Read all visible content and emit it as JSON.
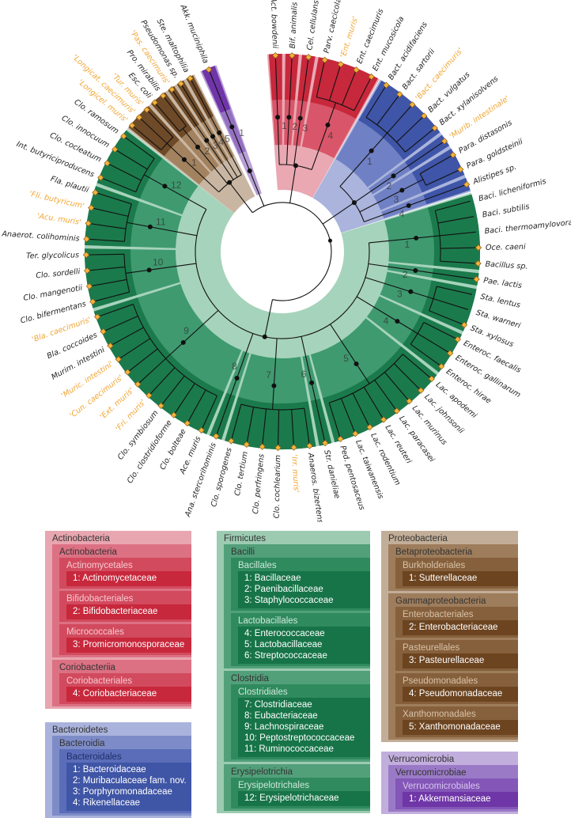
{
  "tree": {
    "marker_color": "#f3b43b",
    "novel_color": "#f0a534",
    "phyla": [
      {
        "colors": {
          "light": "#c9b6a2",
          "mid": "#a2825f",
          "dark": "#6e4a28"
        },
        "families": [
          {
            "n": "1",
            "leaves": [
              {
                "t": "'Longicel. muris'",
                "novel": true
              },
              {
                "t": "'Longicat. caecimuris'",
                "novel": true
              },
              {
                "t": "'Tur. muris'",
                "novel": true
              }
            ]
          },
          {
            "n": "2",
            "leaves": [
              {
                "t": "Esc. coli"
              },
              {
                "t": "Pro. mirabilis"
              }
            ]
          },
          {
            "n": "3",
            "leaves": [
              {
                "t": "'Pas. caecimuris'",
                "novel": true
              }
            ]
          },
          {
            "n": "4",
            "leaves": [
              {
                "t": "Pseudomonas sp."
              }
            ]
          },
          {
            "n": "5",
            "leaves": [
              {
                "t": "Ste. maltophilia"
              }
            ]
          }
        ]
      },
      {
        "colors": {
          "light": "#b9a0d6",
          "mid": "#9470c2",
          "dark": "#7035a8"
        },
        "families": [
          {
            "n": "1",
            "leaves": [
              {
                "t": "Akk. muciniphila"
              }
            ]
          }
        ]
      },
      {
        "colors": {
          "light": "#e9a8b2",
          "mid": "#d9566a",
          "dark": "#c8283c"
        },
        "families": [
          {
            "n": "1",
            "leaves": [
              {
                "t": "Act. bowdenii"
              }
            ]
          },
          {
            "n": "2",
            "leaves": [
              {
                "t": "Bif. animalis"
              }
            ]
          },
          {
            "n": "3",
            "leaves": [
              {
                "t": "Cel. cellulans"
              }
            ]
          },
          {
            "n": "4",
            "leaves": [
              {
                "t": "Parv. caecicola"
              },
              {
                "t": "'Ent. muris'",
                "novel": true
              },
              {
                "t": "Ent. caecimuris"
              },
              {
                "t": "Ent. mucosicola"
              }
            ]
          }
        ]
      },
      {
        "colors": {
          "light": "#aab4dc",
          "mid": "#6f80c4",
          "dark": "#3f55a8"
        },
        "families": [
          {
            "n": "1",
            "leaves": [
              {
                "t": "Bact. acidifaciens"
              },
              {
                "t": "Bact. sartorii"
              },
              {
                "t": "'Bact. caecimuris'",
                "novel": true
              },
              {
                "t": "Bact. vulgatus"
              },
              {
                "t": "Bact. xylanisolvens"
              }
            ]
          },
          {
            "n": "2",
            "leaves": [
              {
                "t": "'Murib. intestinale'",
                "novel": true
              }
            ]
          },
          {
            "n": "3",
            "leaves": [
              {
                "t": "Para. distasonis"
              },
              {
                "t": "Para. goldsteinii"
              }
            ]
          },
          {
            "n": "4",
            "leaves": [
              {
                "t": "Alistipes sp."
              }
            ]
          }
        ]
      },
      {
        "colors": {
          "light": "#a6d3bb",
          "mid": "#3f9a70",
          "dark": "#1b7a4c"
        },
        "families": [
          {
            "n": "1",
            "leaves": [
              {
                "t": "Baci. licheniformis",
                "nomark": true
              },
              {
                "t": "Baci. subtilis",
                "nomark": true
              },
              {
                "t": "Baci. thermoamylovorans",
                "nomark": true
              },
              {
                "t": "Oce. caeni"
              },
              {
                "t": "Bacillus sp."
              }
            ]
          },
          {
            "n": "2",
            "leaves": [
              {
                "t": "Pae. lactis"
              }
            ]
          },
          {
            "n": "3",
            "leaves": [
              {
                "t": "Sta. lentus",
                "nomark": true
              },
              {
                "t": "Sta. warneri",
                "nomark": true
              },
              {
                "t": "Sta. xylosus"
              }
            ]
          },
          {
            "n": "4",
            "leaves": [
              {
                "t": "Enteroc. faecalis"
              },
              {
                "t": "Enteroc. gallinarum"
              },
              {
                "t": "Enteroc. hirae"
              }
            ]
          },
          {
            "n": "5",
            "leaves": [
              {
                "t": "Lac. apodemi"
              },
              {
                "t": "Lac. johnsonii"
              },
              {
                "t": "Lac. murinus"
              },
              {
                "t": "Lac. paracasei"
              },
              {
                "t": "Lac. reuteri"
              },
              {
                "t": "Lac. rodentium"
              },
              {
                "t": "Lac. taiwanensis"
              },
              {
                "t": "Ped. pentosaceus"
              }
            ]
          },
          {
            "n": "6",
            "leaves": [
              {
                "t": "Str. danieliae"
              }
            ]
          },
          {
            "n": "7",
            "leaves": [
              {
                "t": "Anaeros. bizertensis"
              },
              {
                "t": "'Irr. muris'",
                "novel": true
              },
              {
                "t": "Clo. cochlearium"
              },
              {
                "t": "Clo. perfringens"
              },
              {
                "t": "Clo. tertium"
              },
              {
                "t": "Clo. sporogenes"
              }
            ]
          },
          {
            "n": "8",
            "leaves": [
              {
                "t": "Ana. stercorihominis"
              }
            ]
          },
          {
            "n": "9",
            "leaves": [
              {
                "t": "Ace. muris"
              },
              {
                "t": "Clo. bolteae"
              },
              {
                "t": "Clo. clostridioforme"
              },
              {
                "t": "Clo. symbiosum"
              },
              {
                "t": "'Fri. muris'",
                "novel": true
              },
              {
                "t": "'Ext. muris'",
                "novel": true
              },
              {
                "t": "'Cun. caecimuris'",
                "novel": true
              },
              {
                "t": "'Muric. intestini'",
                "novel": true
              },
              {
                "t": "Murim. intestini"
              },
              {
                "t": "Bla. coccoides"
              },
              {
                "t": "'Bla. caecimuris'",
                "novel": true
              }
            ]
          },
          {
            "n": "10",
            "leaves": [
              {
                "t": "Clo. bifermentans"
              },
              {
                "t": "Clo. mangenotii"
              },
              {
                "t": "Clo. sordelli"
              },
              {
                "t": "Ter. glycolicus"
              }
            ]
          },
          {
            "n": "11",
            "leaves": [
              {
                "t": "Anaerot. colihominis"
              },
              {
                "t": "'Acu. muris'",
                "novel": true
              },
              {
                "t": "'Fli. butyricum'",
                "novel": true
              },
              {
                "t": "Fla. plautii"
              }
            ]
          },
          {
            "n": "12",
            "leaves": [
              {
                "t": "Int. butyriciproducens"
              },
              {
                "t": "Clo. cocleatum"
              },
              {
                "t": "Clo. innocuum"
              },
              {
                "t": "Clo. ramosum"
              }
            ]
          }
        ]
      }
    ]
  },
  "legend": [
    {
      "name": "Actinobacteria",
      "colors": [
        "#e8a6b0",
        "#dc7183",
        "#d24a5e",
        "#c8283c",
        "#f6c9d0"
      ],
      "classes": [
        {
          "name": "Actinobacteria",
          "orders": [
            {
              "name": "Actinomycetales",
              "families": [
                "1: Actinomycetaceae"
              ]
            },
            {
              "name": "Bifidobacteriales",
              "families": [
                "2: Bifidobacteriaceae"
              ]
            },
            {
              "name": "Micrococcales",
              "families": [
                "3: Promicromonosporaceae"
              ]
            }
          ]
        },
        {
          "name": "Coriobacteriia",
          "orders": [
            {
              "name": "Coriobacteriales",
              "families": [
                "4: Coriobacteriaceae"
              ]
            }
          ]
        }
      ]
    },
    {
      "name": "Firmicutes",
      "colors": [
        "#9ccbb2",
        "#52a07a",
        "#2f8a5e",
        "#177448",
        "#cfe8da"
      ],
      "classes": [
        {
          "name": "Bacilli",
          "orders": [
            {
              "name": "Bacillales",
              "families": [
                "1: Bacillaceae",
                "2: Paenibacillaceae",
                "3: Staphylococcaceae"
              ]
            },
            {
              "name": "Lactobacillales",
              "families": [
                "4: Enterococcaceae",
                "5: Lactobacillaceae",
                "6: Streptococcaceae"
              ]
            }
          ]
        },
        {
          "name": "Clostridia",
          "orders": [
            {
              "name": "Clostridiales",
              "families": [
                "7: Clostridiaceae",
                "8: Eubacteriaceae",
                "9: Lachnospiraceae",
                "10: Peptostreptococcaceae",
                "11: Ruminococcaceae"
              ]
            }
          ]
        },
        {
          "name": "Erysipelotrichia",
          "orders": [
            {
              "name": "Erysipelotrichales",
              "families": [
                "12: Erysipelotrichaceae"
              ]
            }
          ]
        }
      ]
    },
    {
      "name": "Proteobacteria",
      "colors": [
        "#c2ae98",
        "#9e7d5c",
        "#86603c",
        "#6c4420",
        "#d8c2a8"
      ],
      "classes": [
        {
          "name": "Betaproteobacteria",
          "orders": [
            {
              "name": "Burkholderiales",
              "families": [
                "1: Sutterellaceae"
              ]
            }
          ]
        },
        {
          "name": "Gammaproteobacteria",
          "orders": [
            {
              "name": "Enterobacteriales",
              "families": [
                "2: Enterobacteriaceae"
              ]
            },
            {
              "name": "Pasteurellales",
              "families": [
                "3: Pasteurellaceae"
              ]
            },
            {
              "name": "Pseudomonadales",
              "families": [
                "4: Pseudomonadaceae"
              ]
            },
            {
              "name": "Xanthomonadales",
              "families": [
                "5: Xanthomonadaceae"
              ]
            }
          ]
        }
      ]
    },
    {
      "name": "Bacteroidetes",
      "colors": [
        "#a9b3db",
        "#7d8cc8",
        "#5b6db8",
        "#3f55a6",
        "#1f2f6a"
      ],
      "classes": [
        {
          "name": "Bacteroidia",
          "orders": [
            {
              "name": "Bacteroidales",
              "families": [
                "1: Bacteroidaceae",
                "2: Muribaculaceae fam. nov.",
                "3: Porphyromonadaceae",
                "4: Rikenellaceae"
              ]
            }
          ]
        }
      ]
    },
    {
      "name": "Verrucomicrobia",
      "colors": [
        "#c2aedd",
        "#9a7ac6",
        "#8356b8",
        "#6e36a6",
        "#d9c8ee"
      ],
      "classes": [
        {
          "name": "Verrucomicrobiae",
          "orders": [
            {
              "name": "Verrucomicrobiales",
              "families": [
                "1: Akkermansiaceae"
              ]
            }
          ]
        }
      ]
    }
  ]
}
